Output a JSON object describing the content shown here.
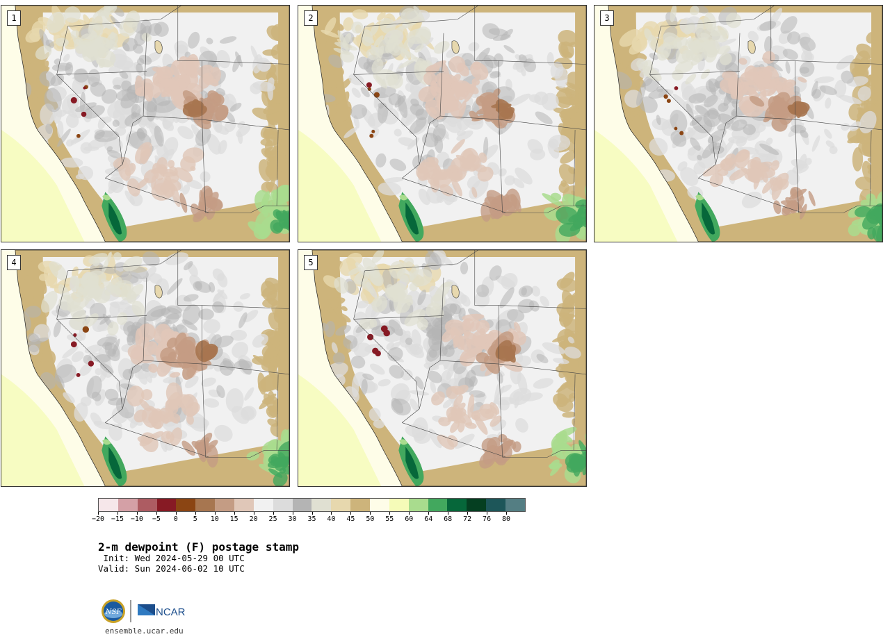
{
  "panels": [
    {
      "label": "1"
    },
    {
      "label": "2"
    },
    {
      "label": "3"
    },
    {
      "label": "4"
    },
    {
      "label": "5"
    }
  ],
  "colorbar": {
    "units": "F",
    "tick_labels": [
      "−20",
      "−15",
      "−10",
      "−5",
      "0",
      "5",
      "10",
      "15",
      "20",
      "25",
      "30",
      "35",
      "40",
      "45",
      "50",
      "55",
      "60",
      "64",
      "68",
      "72",
      "76",
      "80"
    ],
    "colors": [
      "#f6e7ea",
      "#d4a0a6",
      "#ad5c62",
      "#871a24",
      "#8b4513",
      "#a77650",
      "#c49c84",
      "#e0c7b8",
      "#f1f1f1",
      "#dcdcdc",
      "#b4b4b4",
      "#e0e0d2",
      "#e7d8ae",
      "#cdb47b",
      "#fefde8",
      "#f5fbb8",
      "#a9dc8e",
      "#42a85e",
      "#06673a",
      "#053f21",
      "#1d5659",
      "#547e83"
    ]
  },
  "title": "2-m dewpoint (F) postage stamp",
  "init_text": " Init: Wed 2024-05-29 00 UTC",
  "valid_text": "Valid: Sun 2024-06-02 10 UTC",
  "logos": {
    "nsf": "NSF",
    "ncar": "NCAR"
  },
  "site_url": "ensemble.ucar.edu"
}
